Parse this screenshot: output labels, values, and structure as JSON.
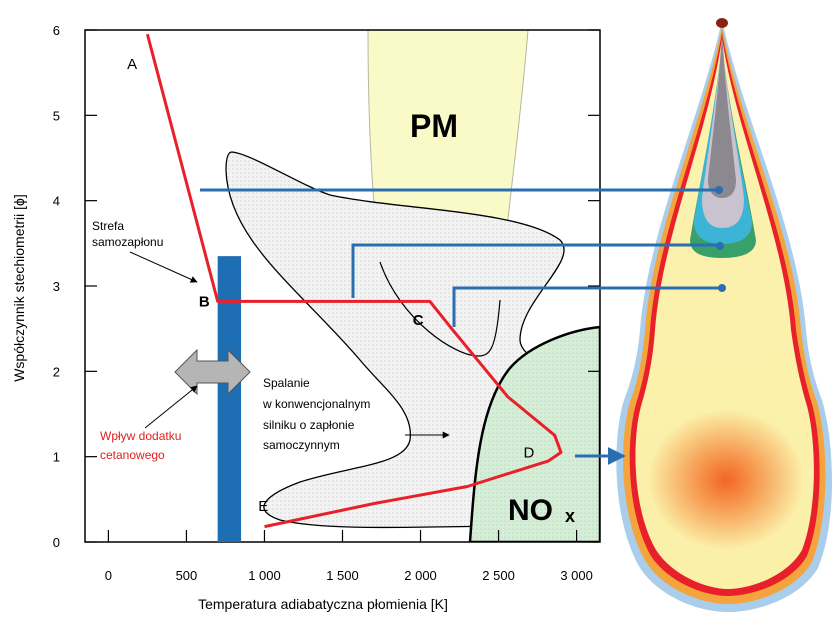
{
  "chart_data": {
    "type": "line",
    "xlabel": "Temperatura adiabatyczna płomienia [K]",
    "ylabel": "Współczynnik stechiometrii [ϕ]",
    "xlim": [
      -150,
      3150
    ],
    "ylim": [
      0,
      6
    ],
    "x_ticks": [
      {
        "value": 0,
        "label": "0"
      },
      {
        "value": 500,
        "label": "500"
      },
      {
        "value": 1000,
        "label": "1 000"
      },
      {
        "value": 1500,
        "label": "1 500"
      },
      {
        "value": 2000,
        "label": "2 000"
      },
      {
        "value": 2500,
        "label": "2 500"
      },
      {
        "value": 3000,
        "label": "3 000"
      }
    ],
    "y_ticks": [
      {
        "value": 0,
        "label": "0"
      },
      {
        "value": 1,
        "label": "1"
      },
      {
        "value": 2,
        "label": "2"
      },
      {
        "value": 3,
        "label": "3"
      },
      {
        "value": 4,
        "label": "4"
      },
      {
        "value": 5,
        "label": "5"
      },
      {
        "value": 6,
        "label": "6"
      }
    ],
    "series": [
      {
        "color": "#e8202a",
        "points": [
          [
            250,
            5.95
          ],
          [
            700,
            2.82
          ],
          [
            1000,
            2.82
          ],
          [
            2060,
            2.82
          ],
          [
            2200,
            2.5
          ],
          [
            2560,
            1.7
          ],
          [
            2860,
            1.25
          ],
          [
            2900,
            1.05
          ],
          [
            2820,
            0.95
          ],
          [
            2300,
            0.65
          ],
          [
            1700,
            0.45
          ],
          [
            1000,
            0.18
          ]
        ]
      }
    ],
    "point_labels": [
      {
        "label": "A",
        "x": 120,
        "y": 5.6,
        "bold": false
      },
      {
        "label": "B",
        "x": 580,
        "y": 2.82,
        "bold": true
      },
      {
        "label": "C",
        "x": 1950,
        "y": 2.6,
        "bold": true
      },
      {
        "label": "D",
        "x": 2660,
        "y": 1.05,
        "bold": false
      },
      {
        "label": "E",
        "x": 960,
        "y": 0.42,
        "bold": false
      }
    ],
    "regions": [
      {
        "name": "PM",
        "color": "#fafac8"
      },
      {
        "name": "NOx",
        "color": "#daf0dc"
      }
    ],
    "annotations": {
      "pm": "PM",
      "nox_main": "NO",
      "nox_sub": "x",
      "strefa_1": "Strefa",
      "strefa_2": "samozapłonu",
      "spalanie_1": "Spalanie",
      "spalanie_2": "w konwencjonalnym",
      "spalanie_3": "silniku o zapłonie",
      "spalanie_4": "samoczynnym",
      "wplyw_1": "Wpływ dodatku",
      "wplyw_2": "cetanowego"
    },
    "cetane_band": {
      "x": [
        700,
        850
      ],
      "y": [
        0,
        3.35
      ],
      "color": "#1e6eb4"
    },
    "colors": {
      "curve": "#e8202a",
      "arrow": "#2a6db0",
      "pm_fill": "#fafac8",
      "nox_fill": "#daf0dc",
      "combustion_fill": "#f0f0f0"
    }
  }
}
